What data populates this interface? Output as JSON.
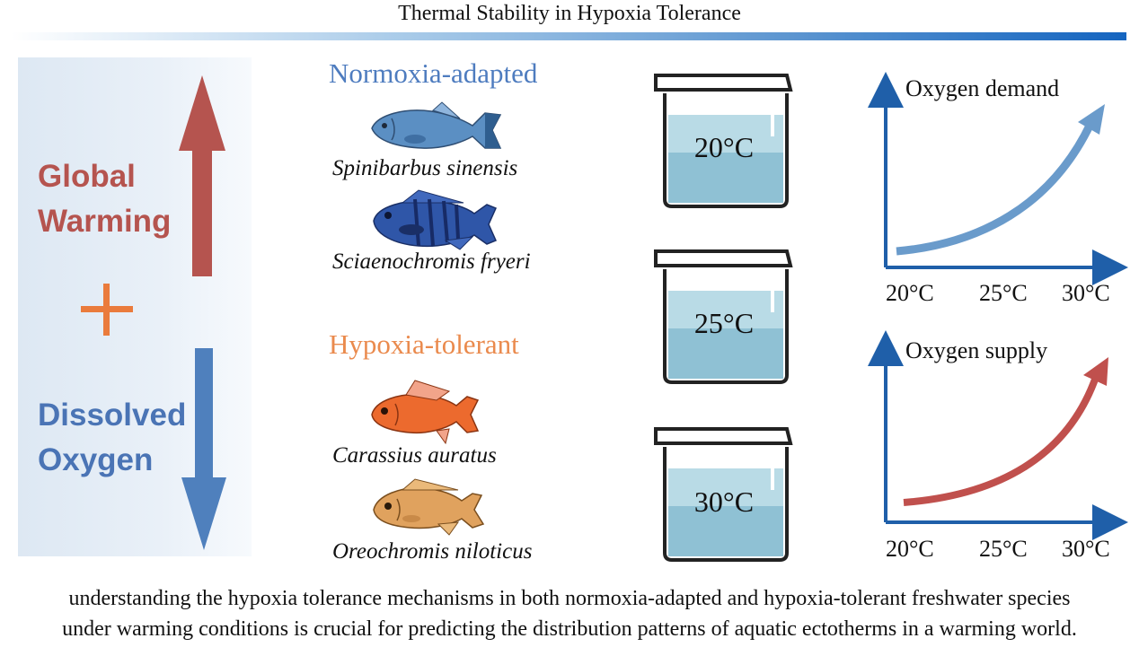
{
  "title": "Thermal Stability in Hypoxia Tolerance",
  "left_panel": {
    "global_warming_line1": "Global",
    "global_warming_line2": "Warming",
    "plus": "+",
    "dissolved_oxygen_line1": "Dissolved",
    "dissolved_oxygen_line2": "Oxygen"
  },
  "groups": {
    "normoxia_title": "Normoxia-adapted",
    "hypoxia_title": "Hypoxia-tolerant"
  },
  "species": [
    "Spinibarbus sinensis",
    "Sciaenochromis fryeri",
    "Carassius auratus",
    "Oreochromis niloticus"
  ],
  "beakers": [
    "20°C",
    "25°C",
    "30°C"
  ],
  "graphs": {
    "demand": {
      "title": "Oxygen demand",
      "ticks": [
        "20°C",
        "25°C",
        "30°C"
      ],
      "color": "#6a9bcb"
    },
    "supply": {
      "title": "Oxygen supply",
      "ticks": [
        "20°C",
        "25°C",
        "30°C"
      ],
      "color": "#c0504d"
    }
  },
  "caption": {
    "line1": "understanding the hypoxia tolerance mechanisms in both normoxia-adapted and hypoxia-tolerant freshwater species",
    "line2": "under warming conditions is crucial for predicting the distribution patterns of aquatic ectotherms in a warming world."
  },
  "colors": {
    "warming": "#b5544f",
    "oxygen": "#4a74b5",
    "plus": "#ea7b3c",
    "axis": "#1f5fa9"
  }
}
